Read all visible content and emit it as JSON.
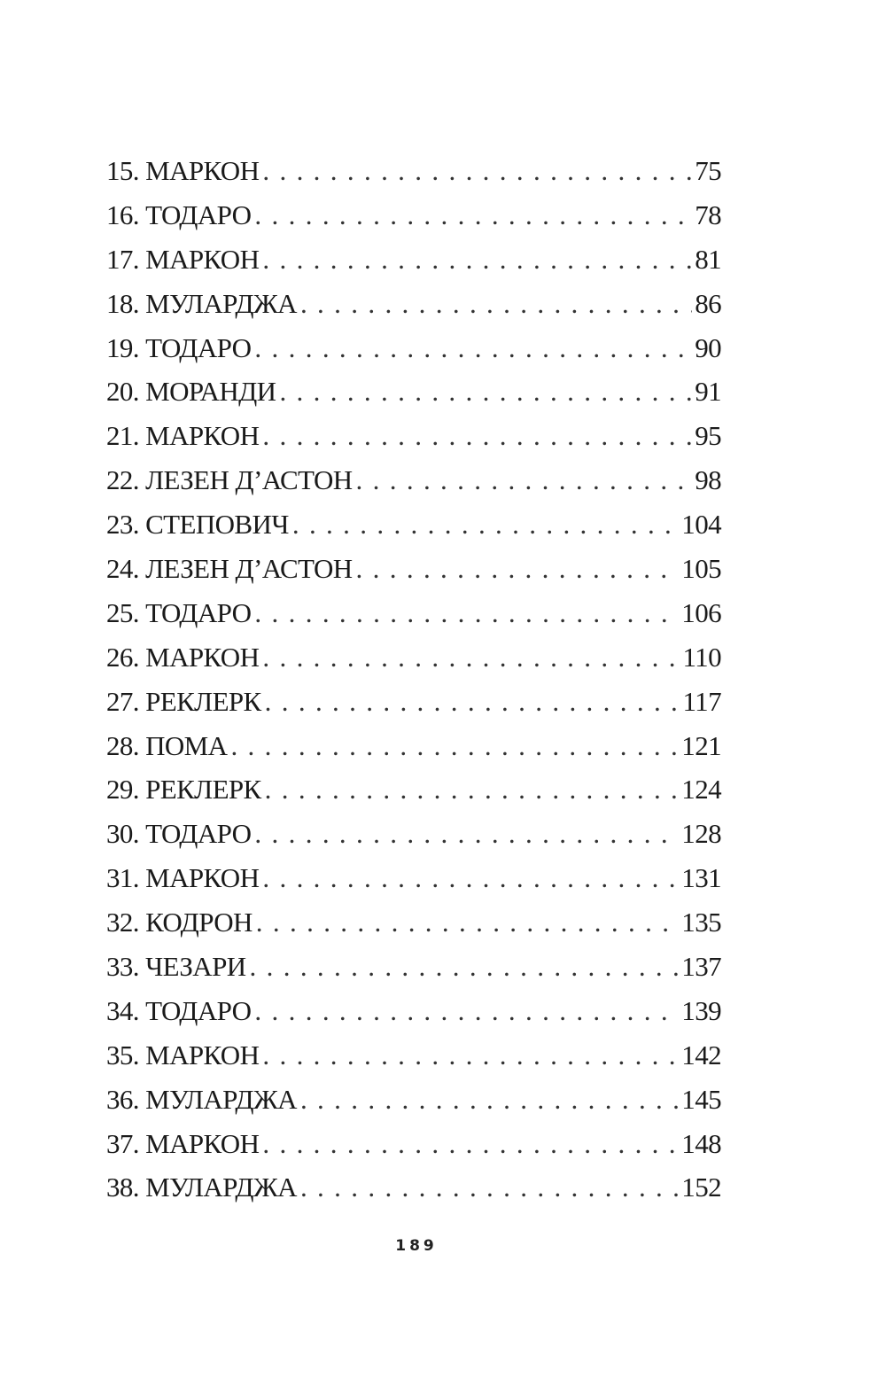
{
  "entries": [
    {
      "title": "15. МАРКОН",
      "page": "75"
    },
    {
      "title": "16. ТОДАРО",
      "page": "78"
    },
    {
      "title": "17. МАРКОН",
      "page": "81"
    },
    {
      "title": "18. МУЛАРДЖА",
      "page": "86"
    },
    {
      "title": "19. ТОДАРО",
      "page": "90"
    },
    {
      "title": "20. МОРАНДИ",
      "page": "91"
    },
    {
      "title": "21. МАРКОН",
      "page": "95"
    },
    {
      "title": "22. ЛЕЗЕН Д’АСТОН",
      "page": "98"
    },
    {
      "title": "23. СТЕПОВИЧ",
      "page": "104"
    },
    {
      "title": "24. ЛЕЗЕН Д’АСТОН",
      "page": "105"
    },
    {
      "title": "25. ТОДАРО",
      "page": "106"
    },
    {
      "title": "26. МАРКОН",
      "page": "110"
    },
    {
      "title": "27. РЕКЛЕРК",
      "page": "117"
    },
    {
      "title": "28. ПОМА",
      "page": "121"
    },
    {
      "title": "29. РЕКЛЕРК",
      "page": "124"
    },
    {
      "title": "30. ТОДАРО",
      "page": "128"
    },
    {
      "title": "31. МАРКОН",
      "page": "131"
    },
    {
      "title": "32. КОДРОН",
      "page": "135"
    },
    {
      "title": "33. ЧЕЗАРИ",
      "page": "137"
    },
    {
      "title": "34. ТОДАРО",
      "page": "139"
    },
    {
      "title": "35. МАРКОН",
      "page": "142"
    },
    {
      "title": "36. МУЛАРДЖА",
      "page": "145"
    },
    {
      "title": "37. МАРКОН",
      "page": "148"
    },
    {
      "title": "38. МУЛАРДЖА",
      "page": "152"
    }
  ],
  "page_number": "189"
}
